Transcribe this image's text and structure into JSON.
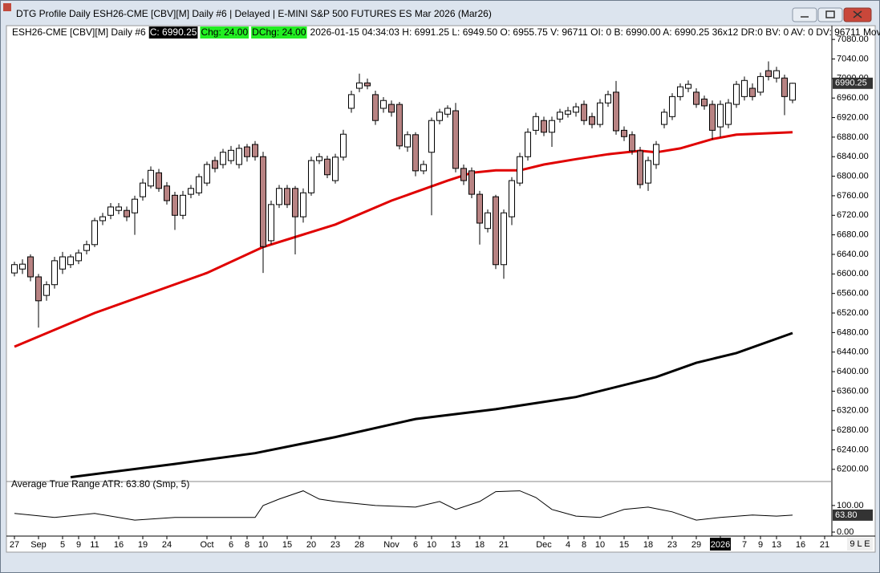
{
  "window": {
    "title": "DTG Profile Daily ESH26-CME [CBV][M]  Daily #6 | Delayed | E-MINI S&P 500 FUTURES ES Mar 2026 (Mar26)"
  },
  "header": {
    "symbol": "ESH26-CME [CBV][M]  Daily #6",
    "close": "C: 6990.25",
    "chg": "Chg: 24.00",
    "dchg": "DChg: 24.00",
    "details": "2026-01-15 04:34:03 H: 6991.25 L: 6949.50 O: 6955.75 V: 96711 OI: 0 B: 6990.00 A: 6990.25 36x12 DR:0 BV: 0 AV: 0 DV: 96711 Moving A"
  },
  "corner": "9 L E",
  "chart_data": [
    {
      "type": "candlestick",
      "last_label": "6990.25",
      "up_color": "#ffffff",
      "down_color": "#b88383",
      "open": [
        6602,
        6610,
        6635,
        6594,
        6556,
        6578,
        6610,
        6619,
        6627,
        6648,
        6660,
        6709,
        6720,
        6730,
        6730,
        6725,
        6758,
        6780,
        6807,
        6780,
        6761,
        6720,
        6763,
        6766,
        6786,
        6832,
        6824,
        6832,
        6824,
        6860,
        6865,
        6840,
        6668,
        6742,
        6775,
        6775,
        6717,
        6766,
        6832,
        6835,
        6791,
        6839,
        6939,
        6980,
        6991,
        6967,
        6939,
        6947,
        6947,
        6860,
        6885,
        6811,
        6849,
        6914,
        6927,
        6934,
        6816,
        6811,
        6763,
        6693,
        6758,
        6619,
        6717,
        6786,
        6840,
        6894,
        6914,
        6890,
        6917,
        6927,
        6931,
        6947,
        6922,
        6906,
        6950,
        6972,
        6894,
        6885,
        6852,
        6786,
        6824,
        6906,
        6922,
        6963,
        6980,
        6972,
        6958,
        6947,
        6901,
        6906,
        6947,
        6963,
        6980,
        6972,
        7016,
        7001,
        7001,
        6955.75
      ],
      "high": [
        6625,
        6630,
        6640,
        6600,
        6585,
        6635,
        6645,
        6640,
        6650,
        6668,
        6715,
        6725,
        6745,
        6745,
        6738,
        6760,
        6795,
        6820,
        6815,
        6788,
        6768,
        6770,
        6782,
        6805,
        6830,
        6840,
        6856,
        6862,
        6865,
        6866,
        6872,
        6850,
        6750,
        6782,
        6782,
        6780,
        6775,
        6840,
        6847,
        6842,
        6846,
        6895,
        6975,
        7010,
        7000,
        6975,
        6962,
        6955,
        6952,
        6892,
        6890,
        6832,
        6920,
        6938,
        6945,
        6950,
        6824,
        6818,
        6770,
        6732,
        6762,
        6732,
        6798,
        6848,
        6898,
        6930,
        6922,
        6922,
        6938,
        6942,
        6950,
        6955,
        6930,
        6958,
        6975,
        6995,
        6902,
        6892,
        6860,
        6840,
        6872,
        6938,
        6970,
        6990,
        6996,
        6980,
        6965,
        6955,
        6955,
        6958,
        6995,
        7004,
        6990,
        7012,
        7035,
        7024,
        7008,
        6991.25
      ],
      "low": [
        6595,
        6600,
        6585,
        6490,
        6545,
        6570,
        6600,
        6612,
        6620,
        6640,
        6655,
        6700,
        6712,
        6722,
        6708,
        6680,
        6750,
        6775,
        6768,
        6742,
        6690,
        6712,
        6755,
        6760,
        6780,
        6808,
        6816,
        6825,
        6816,
        6830,
        6832,
        6602,
        6660,
        6735,
        6735,
        6640,
        6705,
        6760,
        6825,
        6796,
        6785,
        6832,
        6930,
        6972,
        6978,
        6905,
        6930,
        6922,
        6855,
        6850,
        6800,
        6804,
        6720,
        6906,
        6920,
        6808,
        6782,
        6755,
        6660,
        6685,
        6610,
        6590,
        6700,
        6780,
        6832,
        6885,
        6882,
        6860,
        6910,
        6920,
        6922,
        6905,
        6898,
        6900,
        6942,
        6885,
        6872,
        6844,
        6775,
        6770,
        6815,
        6898,
        6915,
        6955,
        6972,
        6940,
        6936,
        6875,
        6880,
        6898,
        6940,
        6955,
        6955,
        6965,
        6996,
        6992,
        6925,
        6949.5
      ],
      "close": [
        6619,
        6620,
        6594,
        6545,
        6578,
        6627,
        6635,
        6635,
        6643,
        6660,
        6709,
        6717,
        6737,
        6737,
        6717,
        6753,
        6786,
        6812,
        6775,
        6750,
        6720,
        6761,
        6775,
        6799,
        6824,
        6816,
        6849,
        6853,
        6857,
        6840,
        6840,
        6656,
        6742,
        6775,
        6742,
        6717,
        6766,
        6832,
        6840,
        6803,
        6839,
        6886,
        6967,
        6991,
        6985,
        6914,
        6955,
        6931,
        6862,
        6885,
        6811,
        6824,
        6914,
        6931,
        6939,
        6816,
        6791,
        6763,
        6704,
        6725,
        6619,
        6725,
        6791,
        6840,
        6890,
        6922,
        6890,
        6914,
        6931,
        6934,
        6942,
        6914,
        6906,
        6950,
        6967,
        6893,
        6881,
        6852,
        6783,
        6832,
        6865,
        6931,
        6963,
        6983,
        6988,
        6947,
        6944,
        6894,
        6947,
        6950,
        6988,
        6996,
        6963,
        7004,
        7004,
        7016,
        6963,
        6990.25
      ],
      "lines": [
        {
          "color": "#e00000",
          "x": [
            0,
            10,
            24,
            31,
            40,
            47,
            54,
            57,
            60,
            63,
            66,
            70,
            74,
            78,
            80,
            83,
            87,
            90,
            97
          ],
          "values": [
            6451,
            6520,
            6602,
            6655,
            6701,
            6750,
            6791,
            6807,
            6812,
            6812,
            6824,
            6835,
            6845,
            6852,
            6849,
            6857,
            6876,
            6885,
            6890
          ]
        },
        {
          "color": "#000000",
          "x": [
            7,
            20,
            30,
            40,
            50,
            60,
            70,
            80,
            85,
            90,
            97
          ],
          "values": [
            6184,
            6211,
            6233,
            6266,
            6303,
            6323,
            6348,
            6389,
            6418,
            6438,
            6479
          ]
        }
      ],
      "xlim": [
        -0.6,
        101.9
      ],
      "ylim": [
        6180,
        7095
      ],
      "yticks": [
        {
          "value": 6200,
          "label": "6200.00"
        },
        {
          "value": 6240,
          "label": "6240.00"
        },
        {
          "value": 6280,
          "label": "6280.00"
        },
        {
          "value": 6320,
          "label": "6320.00"
        },
        {
          "value": 6360,
          "label": "6360.00"
        },
        {
          "value": 6400,
          "label": "6400.00"
        },
        {
          "value": 6440,
          "label": "6440.00"
        },
        {
          "value": 6480,
          "label": "6480.00"
        },
        {
          "value": 6520,
          "label": "6520.00"
        },
        {
          "value": 6560,
          "label": "6560.00"
        },
        {
          "value": 6600,
          "label": "6600.00"
        },
        {
          "value": 6640,
          "label": "6640.00"
        },
        {
          "value": 6680,
          "label": "6680.00"
        },
        {
          "value": 6720,
          "label": "6720.00"
        },
        {
          "value": 6760,
          "label": "6760.00"
        },
        {
          "value": 6800,
          "label": "6800.00"
        },
        {
          "value": 6840,
          "label": "6840.00"
        },
        {
          "value": 6880,
          "label": "6880.00"
        },
        {
          "value": 6920,
          "label": "6920.00"
        },
        {
          "value": 6960,
          "label": "6960.00"
        },
        {
          "value": 7000,
          "label": "7000.00"
        },
        {
          "value": 7040,
          "label": "7040.00"
        },
        {
          "value": 7080,
          "label": "7080.00"
        }
      ],
      "xticks": [
        {
          "value": 0,
          "label": "27"
        },
        {
          "value": 3,
          "label": "Sep"
        },
        {
          "value": 6,
          "label": "5"
        },
        {
          "value": 8,
          "label": "9"
        },
        {
          "value": 10,
          "label": "11"
        },
        {
          "value": 13,
          "label": "16"
        },
        {
          "value": 16,
          "label": "19"
        },
        {
          "value": 19,
          "label": "24"
        },
        {
          "value": 24,
          "label": "Oct"
        },
        {
          "value": 27,
          "label": "6"
        },
        {
          "value": 29,
          "label": "8"
        },
        {
          "value": 31,
          "label": "10"
        },
        {
          "value": 34,
          "label": "15"
        },
        {
          "value": 37,
          "label": "20"
        },
        {
          "value": 40,
          "label": "23"
        },
        {
          "value": 43,
          "label": "28"
        },
        {
          "value": 47,
          "label": "Nov"
        },
        {
          "value": 50,
          "label": "6"
        },
        {
          "value": 52,
          "label": "10"
        },
        {
          "value": 55,
          "label": "13"
        },
        {
          "value": 58,
          "label": "18"
        },
        {
          "value": 61,
          "label": "21"
        },
        {
          "value": 66,
          "label": "Dec"
        },
        {
          "value": 69,
          "label": "4"
        },
        {
          "value": 71,
          "label": "8"
        },
        {
          "value": 73,
          "label": "10"
        },
        {
          "value": 76,
          "label": "15"
        },
        {
          "value": 79,
          "label": "18"
        },
        {
          "value": 82,
          "label": "23"
        },
        {
          "value": 85,
          "label": "29"
        },
        {
          "value": 88,
          "label": "2026"
        },
        {
          "value": 91,
          "label": "7"
        },
        {
          "value": 93,
          "label": "9"
        },
        {
          "value": 95,
          "label": "13"
        },
        {
          "value": 98,
          "label": "16"
        },
        {
          "value": 101,
          "label": "21"
        }
      ]
    },
    {
      "type": "line",
      "title": "Average True Range  ATR: 63.80  (Smp, 5)",
      "last_label": "63.80",
      "color": "#000000",
      "x": [
        0,
        5,
        10,
        15,
        20,
        25,
        30,
        31,
        33,
        36,
        38,
        40,
        45,
        50,
        53,
        55,
        58,
        60,
        63,
        65,
        67,
        70,
        73,
        76,
        79,
        82,
        85,
        88,
        92,
        95,
        97
      ],
      "values": [
        70,
        55,
        70,
        45,
        55,
        55,
        55,
        100,
        124,
        155,
        124,
        115,
        100,
        94,
        115,
        85,
        115,
        152,
        155,
        130,
        85,
        60,
        55,
        85,
        94,
        76,
        45,
        55,
        64,
        60,
        63.8
      ],
      "xlim": [
        -0.6,
        101.9
      ],
      "ylim": [
        -12,
        175
      ],
      "yticks": [
        {
          "value": 0,
          "label": "0.00"
        },
        {
          "value": 100,
          "label": "100.00"
        }
      ]
    }
  ]
}
